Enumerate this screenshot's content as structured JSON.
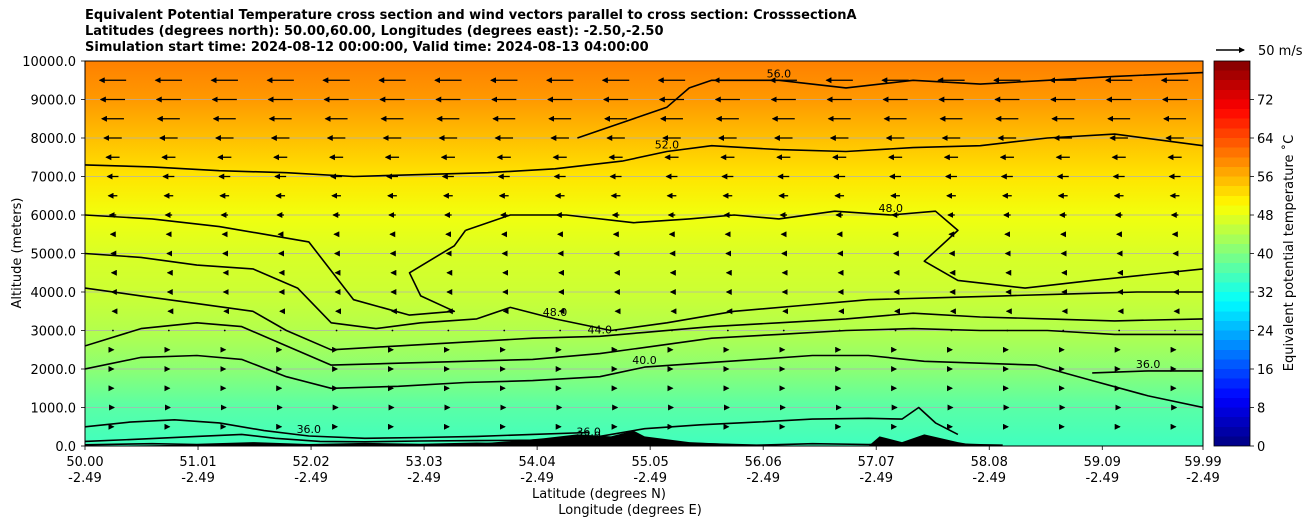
{
  "title_lines": [
    "Equivalent Potential Temperature cross section and wind vectors parallel to cross section: CrosssectionA",
    "Latitudes (degrees north): 50.00,60.00, Longitudes (degrees east): -2.50,-2.50",
    "Simulation start time: 2024-08-12 00:00:00, Valid time: 2024-08-13 04:00:00"
  ],
  "chart_data": {
    "type": "heatmap",
    "subtype": "cross-section filled contours with contour lines, terrain and wind vectors",
    "xlabel_line1": "Latitude (degrees N)",
    "xlabel_line2": "Longitude (degrees E)",
    "ylabel": "Altitude (meters)",
    "x_ticks": [
      {
        "lat": "50.00",
        "lon": "-2.49"
      },
      {
        "lat": "51.01",
        "lon": "-2.49"
      },
      {
        "lat": "52.02",
        "lon": "-2.49"
      },
      {
        "lat": "53.03",
        "lon": "-2.49"
      },
      {
        "lat": "54.04",
        "lon": "-2.49"
      },
      {
        "lat": "55.05",
        "lon": "-2.49"
      },
      {
        "lat": "56.06",
        "lon": "-2.49"
      },
      {
        "lat": "57.07",
        "lon": "-2.49"
      },
      {
        "lat": "58.08",
        "lon": "-2.49"
      },
      {
        "lat": "59.09",
        "lon": "-2.49"
      },
      {
        "lat": "59.99",
        "lon": "-2.49"
      }
    ],
    "xlim": [
      50.0,
      59.99
    ],
    "y_ticks": [
      "0.0",
      "1000.0",
      "2000.0",
      "3000.0",
      "4000.0",
      "5000.0",
      "6000.0",
      "7000.0",
      "8000.0",
      "9000.0",
      "10000.0"
    ],
    "ylim": [
      0,
      10000
    ],
    "grid": "horizontal",
    "colorbar": {
      "label": "Equivalent potential temperature ˚C",
      "ticks": [
        "0",
        "8",
        "16",
        "24",
        "32",
        "40",
        "48",
        "56",
        "64",
        "72"
      ],
      "range": [
        0,
        80
      ],
      "colormap": "jet"
    },
    "quiver_key": {
      "label": "50 m/s"
    },
    "contour_lines": [
      {
        "level": 32,
        "label": "32.0",
        "points": [
          [
            50.0,
            30
          ],
          [
            50.6,
            60
          ],
          [
            51.0,
            40
          ],
          [
            51.5,
            80
          ],
          [
            52.0,
            30
          ],
          [
            52.5,
            60
          ],
          [
            53.0,
            40
          ],
          [
            53.5,
            70
          ],
          [
            54.0,
            50
          ],
          [
            54.5,
            90
          ],
          [
            55.0,
            40
          ],
          [
            55.5,
            60
          ],
          [
            56.0,
            20
          ],
          [
            56.5,
            60
          ],
          [
            57.0,
            40
          ],
          [
            57.5,
            80
          ],
          [
            58.0,
            30
          ],
          [
            58.2,
            20
          ]
        ]
      },
      {
        "level": 36,
        "label": "36.0",
        "points": [
          [
            50.0,
            120
          ],
          [
            50.5,
            180
          ],
          [
            51.0,
            250
          ],
          [
            51.4,
            300
          ],
          [
            51.7,
            200
          ],
          [
            52.1,
            120
          ],
          [
            52.5,
            110
          ],
          [
            53.0,
            130
          ],
          [
            53.5,
            140
          ],
          [
            54.0,
            150
          ],
          [
            54.5,
            200
          ],
          [
            55.0,
            450
          ],
          [
            55.5,
            550
          ],
          [
            56.0,
            620
          ],
          [
            56.5,
            700
          ],
          [
            57.0,
            720
          ],
          [
            57.3,
            700
          ],
          [
            57.45,
            1000
          ],
          [
            57.6,
            600
          ],
          [
            57.8,
            300
          ]
        ]
      },
      {
        "level": 36,
        "label": "36.0",
        "points": [
          [
            50.0,
            500
          ],
          [
            50.4,
            620
          ],
          [
            50.8,
            680
          ],
          [
            51.2,
            600
          ],
          [
            51.6,
            400
          ],
          [
            52.0,
            260
          ],
          [
            52.5,
            200
          ],
          [
            53.0,
            220
          ],
          [
            53.5,
            250
          ],
          [
            54.0,
            300
          ],
          [
            54.5,
            350
          ]
        ]
      },
      {
        "level": 36,
        "label": "36.0",
        "points": [
          [
            59.0,
            1900
          ],
          [
            59.5,
            1950
          ],
          [
            59.99,
            1950
          ]
        ]
      },
      {
        "level": 40,
        "label": "40.0",
        "points": [
          [
            50.0,
            2000
          ],
          [
            50.5,
            2300
          ],
          [
            51.0,
            2350
          ],
          [
            51.4,
            2250
          ],
          [
            51.8,
            1800
          ],
          [
            52.2,
            1500
          ],
          [
            52.8,
            1550
          ],
          [
            53.4,
            1650
          ],
          [
            54.0,
            1700
          ],
          [
            54.6,
            1800
          ],
          [
            55.0,
            2050
          ],
          [
            55.5,
            2150
          ],
          [
            56.0,
            2250
          ],
          [
            56.5,
            2350
          ],
          [
            57.0,
            2350
          ],
          [
            57.5,
            2200
          ],
          [
            58.0,
            2150
          ],
          [
            58.5,
            2100
          ],
          [
            59.0,
            1700
          ],
          [
            59.5,
            1300
          ],
          [
            59.99,
            1000
          ]
        ]
      },
      {
        "level": 40,
        "label": "",
        "points": [
          [
            50.0,
            2600
          ],
          [
            50.5,
            3050
          ],
          [
            51.0,
            3200
          ],
          [
            51.4,
            3100
          ],
          [
            51.8,
            2600
          ],
          [
            52.2,
            2100
          ],
          [
            52.8,
            2150
          ],
          [
            53.4,
            2200
          ],
          [
            54.0,
            2250
          ],
          [
            54.6,
            2400
          ],
          [
            55.1,
            2600
          ],
          [
            55.6,
            2800
          ],
          [
            56.2,
            2900
          ],
          [
            56.8,
            3000
          ],
          [
            57.4,
            3050
          ],
          [
            58.0,
            3000
          ],
          [
            58.6,
            3000
          ],
          [
            59.2,
            2900
          ],
          [
            59.99,
            2900
          ]
        ]
      },
      {
        "level": 44,
        "label": "44.0",
        "points": [
          [
            50.0,
            4100
          ],
          [
            50.5,
            3900
          ],
          [
            51.0,
            3700
          ],
          [
            51.5,
            3500
          ],
          [
            51.8,
            3000
          ],
          [
            52.2,
            2500
          ],
          [
            52.8,
            2600
          ],
          [
            53.4,
            2700
          ],
          [
            54.0,
            2800
          ],
          [
            54.6,
            2850
          ],
          [
            55.0,
            2950
          ],
          [
            55.6,
            3100
          ],
          [
            56.2,
            3200
          ],
          [
            56.8,
            3300
          ],
          [
            57.4,
            3450
          ],
          [
            58.0,
            3350
          ],
          [
            58.6,
            3300
          ],
          [
            59.2,
            3250
          ],
          [
            59.99,
            3300
          ]
        ]
      },
      {
        "level": 48,
        "label": "48.0",
        "points": [
          [
            50.0,
            5000
          ],
          [
            50.5,
            4900
          ],
          [
            51.0,
            4700
          ],
          [
            51.5,
            4600
          ],
          [
            51.9,
            4100
          ],
          [
            52.2,
            3200
          ],
          [
            52.6,
            3050
          ],
          [
            53.0,
            3200
          ],
          [
            53.5,
            3300
          ],
          [
            53.8,
            3600
          ],
          [
            54.2,
            3300
          ],
          [
            54.7,
            3000
          ],
          [
            55.2,
            3200
          ],
          [
            55.8,
            3500
          ],
          [
            56.4,
            3650
          ],
          [
            57.0,
            3800
          ],
          [
            57.6,
            3850
          ],
          [
            58.2,
            3900
          ],
          [
            58.8,
            3950
          ],
          [
            59.4,
            4000
          ],
          [
            59.99,
            4000
          ]
        ]
      },
      {
        "level": 48,
        "label": "48.0",
        "points": [
          [
            53.4,
            5600
          ],
          [
            53.8,
            6000
          ],
          [
            54.3,
            6000
          ],
          [
            54.9,
            5800
          ],
          [
            55.4,
            5900
          ],
          [
            55.8,
            6000
          ],
          [
            56.2,
            5900
          ],
          [
            56.7,
            6100
          ],
          [
            57.2,
            6000
          ],
          [
            57.6,
            6100
          ],
          [
            57.8,
            5600
          ],
          [
            57.5,
            4800
          ],
          [
            57.8,
            4300
          ],
          [
            58.4,
            4100
          ],
          [
            59.0,
            4300
          ],
          [
            59.99,
            4600
          ]
        ]
      },
      {
        "level": 48,
        "label": "",
        "points": [
          [
            50.0,
            6000
          ],
          [
            50.6,
            5900
          ],
          [
            51.2,
            5700
          ],
          [
            51.6,
            5500
          ],
          [
            52.0,
            5300
          ],
          [
            52.4,
            3800
          ],
          [
            52.9,
            3400
          ],
          [
            53.3,
            3500
          ],
          [
            53.0,
            3900
          ],
          [
            52.9,
            4500
          ],
          [
            53.3,
            5200
          ],
          [
            53.4,
            5600
          ]
        ]
      },
      {
        "level": 52,
        "label": "52.0",
        "points": [
          [
            50.0,
            7300
          ],
          [
            50.6,
            7250
          ],
          [
            51.2,
            7150
          ],
          [
            51.8,
            7100
          ],
          [
            52.4,
            7000
          ],
          [
            53.0,
            7050
          ],
          [
            53.6,
            7100
          ],
          [
            54.2,
            7200
          ],
          [
            54.8,
            7400
          ],
          [
            55.2,
            7650
          ],
          [
            55.6,
            7800
          ],
          [
            56.2,
            7700
          ],
          [
            56.8,
            7650
          ],
          [
            57.4,
            7750
          ],
          [
            58.0,
            7800
          ],
          [
            58.6,
            8000
          ],
          [
            59.2,
            8100
          ],
          [
            59.99,
            7800
          ]
        ]
      },
      {
        "level": 56,
        "label": "56.0",
        "points": [
          [
            54.4,
            8000
          ],
          [
            54.8,
            8400
          ],
          [
            55.0,
            8600
          ],
          [
            55.2,
            8800
          ],
          [
            55.4,
            9300
          ],
          [
            55.6,
            9500
          ],
          [
            56.2,
            9500
          ],
          [
            56.8,
            9300
          ],
          [
            57.4,
            9500
          ],
          [
            58.0,
            9400
          ],
          [
            58.6,
            9500
          ],
          [
            59.2,
            9600
          ],
          [
            59.99,
            9700
          ]
        ]
      }
    ],
    "terrain": [
      [
        50.0,
        0
      ],
      [
        50.6,
        20
      ],
      [
        51.0,
        40
      ],
      [
        51.5,
        80
      ],
      [
        52.0,
        30
      ],
      [
        52.5,
        60
      ],
      [
        53.0,
        40
      ],
      [
        53.5,
        60
      ],
      [
        53.9,
        150
      ],
      [
        54.1,
        200
      ],
      [
        54.4,
        300
      ],
      [
        54.7,
        250
      ],
      [
        54.9,
        400
      ],
      [
        55.0,
        250
      ],
      [
        55.4,
        100
      ],
      [
        55.8,
        50
      ],
      [
        56.1,
        0
      ],
      [
        57.0,
        0
      ],
      [
        57.1,
        250
      ],
      [
        57.3,
        100
      ],
      [
        57.5,
        300
      ],
      [
        57.8,
        100
      ],
      [
        58.0,
        0
      ],
      [
        59.99,
        0
      ]
    ],
    "wind_field": {
      "description": "vectors parallel to the cross section; strongest (pointing south) in upper levels",
      "levels_m": [
        9500,
        9000,
        8500,
        8000,
        7500,
        7000,
        6500,
        6000,
        5500,
        5000,
        4500,
        4000,
        3500,
        3000,
        2500,
        2000,
        1500,
        1000,
        500
      ],
      "u_ms_by_level": [
        -12,
        -11,
        -10,
        -8,
        -6,
        -5,
        -4,
        -3,
        -2,
        -1.5,
        -1,
        -1,
        -0.5,
        0,
        0.5,
        0.5,
        0.5,
        1,
        0.5
      ]
    }
  }
}
